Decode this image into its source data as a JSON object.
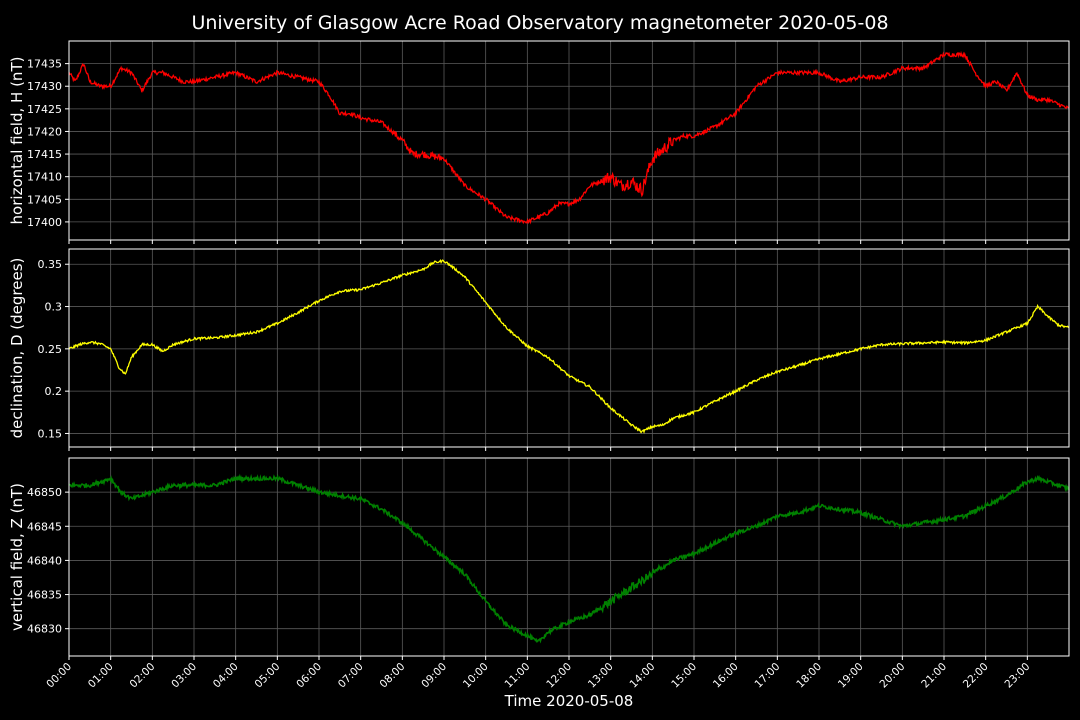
{
  "title": "University of Glasgow Acre Road Observatory magnetometer 2020-05-08",
  "xlabel": "Time 2020-05-08",
  "colors": {
    "background": "#000000",
    "axes": "#ffffff",
    "grid": "#5a5a5a"
  },
  "chart_data": [
    {
      "type": "line",
      "ylabel": "horizontal field, H (nT)",
      "color": "#ff0000",
      "ylim": [
        17396,
        17440
      ],
      "yticks": [
        17400,
        17405,
        17410,
        17415,
        17420,
        17425,
        17430,
        17435
      ],
      "xlim_hours": [
        0,
        24
      ],
      "grid": true,
      "series": [
        {
          "x_hours": [
            0,
            0.15,
            0.25,
            0.35,
            0.5,
            0.75,
            1.0,
            1.25,
            1.5,
            1.75,
            2.0,
            2.25,
            2.5,
            2.75,
            3.0,
            3.5,
            4.0,
            4.5,
            5.0,
            5.5,
            6.0,
            6.25,
            6.5,
            6.75,
            7.0,
            7.5,
            8.0,
            8.25,
            8.5,
            9.0,
            9.5,
            10.0,
            10.5,
            11.0,
            11.25,
            11.5,
            11.75,
            12.0,
            12.25,
            12.5,
            13.0,
            13.25,
            13.5,
            13.75,
            14.0,
            14.25,
            14.5,
            14.75,
            15.0,
            15.5,
            16.0,
            16.5,
            17.0,
            17.5,
            18.0,
            18.5,
            19.0,
            19.5,
            20.0,
            20.5,
            21.0,
            21.5,
            21.75,
            22.0,
            22.25,
            22.5,
            22.75,
            23.0,
            23.25,
            23.5,
            23.75,
            24.0
          ],
          "y": [
            17433,
            17431,
            17433,
            17435,
            17431,
            17430,
            17430,
            17434,
            17433,
            17429,
            17433,
            17433,
            17432,
            17431,
            17431,
            17432,
            17433,
            17431,
            17433,
            17432,
            17431,
            17428,
            17424,
            17424,
            17423,
            17422,
            17418,
            17415,
            17415,
            17414,
            17408,
            17405,
            17401,
            17400,
            17401,
            17402,
            17404,
            17404,
            17405,
            17408,
            17410,
            17408,
            17409,
            17407,
            17414,
            17416,
            17418,
            17419,
            17419,
            17421,
            17424,
            17430,
            17433,
            17433,
            17433,
            17431,
            17432,
            17432,
            17434,
            17434,
            17437,
            17437,
            17433,
            17430,
            17431,
            17429,
            17433,
            17428,
            17427,
            17427,
            17426,
            17425
          ]
        }
      ]
    },
    {
      "type": "line",
      "ylabel": "declination, D (degrees)",
      "color": "#ffff00",
      "ylim": [
        0.134,
        0.368
      ],
      "yticks": [
        0.15,
        0.2,
        0.25,
        0.3,
        0.35
      ],
      "xlim_hours": [
        0,
        24
      ],
      "grid": true,
      "series": [
        {
          "x_hours": [
            0,
            0.25,
            0.5,
            0.75,
            1.0,
            1.2,
            1.35,
            1.5,
            1.75,
            2.0,
            2.25,
            2.5,
            3.0,
            3.5,
            4.0,
            4.5,
            5.0,
            5.5,
            6.0,
            6.5,
            7.0,
            7.5,
            8.0,
            8.5,
            8.75,
            9.0,
            9.25,
            9.5,
            10.0,
            10.5,
            11.0,
            11.5,
            12.0,
            12.5,
            13.0,
            13.5,
            13.75,
            14.0,
            14.25,
            14.5,
            15.0,
            15.5,
            16.0,
            16.5,
            17.0,
            17.5,
            18.0,
            18.5,
            19.0,
            19.5,
            20.0,
            20.5,
            21.0,
            21.5,
            22.0,
            22.5,
            23.0,
            23.25,
            23.5,
            23.75,
            24.0
          ],
          "y": [
            0.25,
            0.255,
            0.258,
            0.256,
            0.25,
            0.228,
            0.22,
            0.24,
            0.255,
            0.255,
            0.247,
            0.255,
            0.262,
            0.263,
            0.266,
            0.27,
            0.28,
            0.293,
            0.307,
            0.318,
            0.32,
            0.328,
            0.337,
            0.344,
            0.352,
            0.354,
            0.345,
            0.335,
            0.305,
            0.275,
            0.253,
            0.24,
            0.218,
            0.205,
            0.18,
            0.16,
            0.152,
            0.158,
            0.16,
            0.168,
            0.175,
            0.188,
            0.2,
            0.213,
            0.223,
            0.23,
            0.238,
            0.244,
            0.25,
            0.255,
            0.256,
            0.257,
            0.258,
            0.257,
            0.26,
            0.27,
            0.28,
            0.3,
            0.288,
            0.278,
            0.275
          ]
        }
      ]
    },
    {
      "type": "line",
      "ylabel": "vertical field, Z (nT)",
      "color": "#008000",
      "ylim": [
        46826,
        46855
      ],
      "yticks": [
        46830,
        46835,
        46840,
        46845,
        46850
      ],
      "xlim_hours": [
        0,
        24
      ],
      "grid": true,
      "series": [
        {
          "x_hours": [
            0,
            0.25,
            0.5,
            1.0,
            1.25,
            1.5,
            2.0,
            2.5,
            3.0,
            3.5,
            4.0,
            4.5,
            5.0,
            5.5,
            6.0,
            6.5,
            7.0,
            7.5,
            8.0,
            8.5,
            9.0,
            9.5,
            10.0,
            10.5,
            11.0,
            11.25,
            11.5,
            12.0,
            12.5,
            13.0,
            13.5,
            14.0,
            14.25,
            14.5,
            15.0,
            15.5,
            16.0,
            16.5,
            17.0,
            17.5,
            18.0,
            18.5,
            19.0,
            19.5,
            20.0,
            20.5,
            21.0,
            21.5,
            22.0,
            22.5,
            23.0,
            23.25,
            23.5,
            23.75,
            24.0
          ],
          "y": [
            46851,
            46851,
            46851,
            46852,
            46850,
            46849,
            46850,
            46851,
            46851,
            46851,
            46852,
            46852,
            46852,
            46851,
            46850,
            46849.5,
            46849,
            46847.5,
            46845.5,
            46843,
            46840.5,
            46838,
            46834,
            46830.5,
            46829,
            46828,
            46829.5,
            46831,
            46832,
            46834,
            46836,
            46838,
            46839,
            46840,
            46841,
            46842.5,
            46844,
            46845,
            46846.5,
            46847,
            46848,
            46847.5,
            46847,
            46846,
            46845,
            46845.5,
            46846,
            46846.5,
            46848,
            46849.5,
            46851.5,
            46852,
            46851.5,
            46851,
            46850.5
          ]
        }
      ]
    }
  ],
  "xticks": [
    "00:00",
    "01:00",
    "02:00",
    "03:00",
    "04:00",
    "05:00",
    "06:00",
    "07:00",
    "08:00",
    "09:00",
    "10:00",
    "11:00",
    "12:00",
    "13:00",
    "14:00",
    "15:00",
    "16:00",
    "17:00",
    "18:00",
    "19:00",
    "20:00",
    "21:00",
    "22:00",
    "23:00"
  ]
}
